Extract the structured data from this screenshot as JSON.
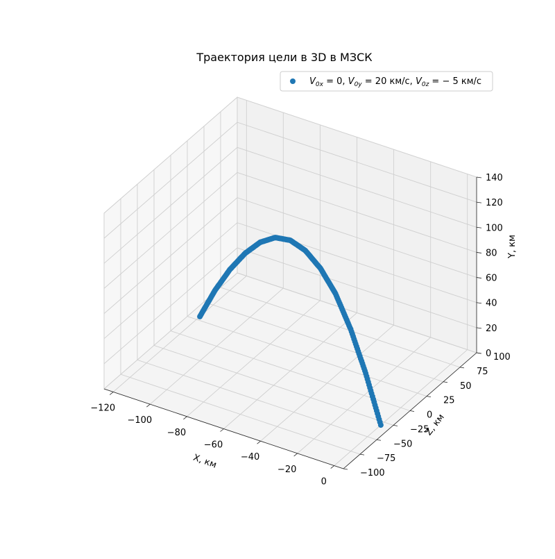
{
  "chart_data": {
    "type": "scatter",
    "projection": "3d",
    "title": "Траектория цели в 3D в МЗСК",
    "xlabel": "X, км",
    "ylabel": "Y, км",
    "zlabel": "Z, км",
    "xlim": [
      -125,
      5
    ],
    "zlim": [
      -100,
      100
    ],
    "ylim": [
      0,
      140
    ],
    "x_ticks": [
      -120,
      -100,
      -80,
      -60,
      -40,
      -20,
      0
    ],
    "z_ticks": [
      -100,
      -75,
      -50,
      -25,
      0,
      25,
      50,
      75,
      100
    ],
    "y_ticks": [
      0,
      20,
      40,
      60,
      80,
      100,
      120,
      140
    ],
    "grid": true,
    "legend_position": "top-right",
    "marker_color": "#1f77b4",
    "legend": {
      "prefix": "V",
      "sub_x": "0x",
      "sep1": " = 0, ",
      "sub_y": "0y",
      "sep2": " = 20 км/с, ",
      "sub_z": "0z",
      "sep3": " = − 5 км/с"
    },
    "series": [
      {
        "x": [
          -120,
          -110,
          -100,
          -90,
          -80,
          -70,
          -60,
          -50,
          -40,
          -30,
          -20,
          -10,
          0
        ],
        "y": [
          0,
          28,
          52,
          72,
          88,
          99,
          104,
          103,
          96,
          83,
          62,
          34,
          0
        ],
        "z": [
          30,
          25,
          20,
          15,
          10,
          5,
          0,
          -5,
          -10,
          -15,
          -20,
          -25,
          -30
        ]
      }
    ]
  }
}
